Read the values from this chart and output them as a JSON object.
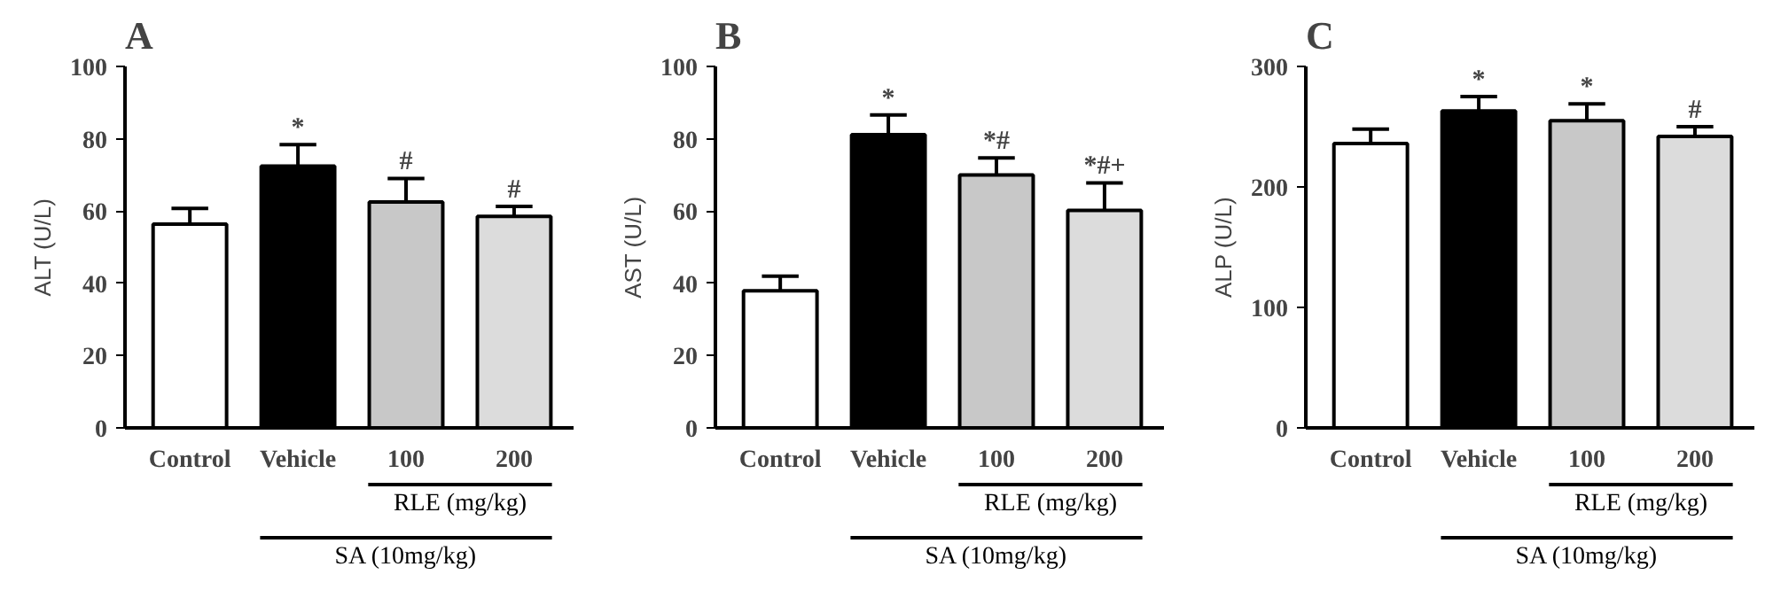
{
  "chart_data": [
    {
      "type": "bar",
      "title": "A",
      "ylabel": "ALT (U/L)",
      "categories": [
        "Control",
        "Vehicle",
        "100",
        "200"
      ],
      "values": [
        56.4,
        72.4,
        62.5,
        58.5
      ],
      "colors": [
        "#ffffff",
        "#000000",
        "#c8c8c8",
        "#dcdcdc"
      ],
      "errors": [
        [
          56.4,
          60.7
        ],
        [
          72.4,
          78.4
        ],
        [
          62.5,
          69
        ],
        [
          58.5,
          61.3
        ]
      ],
      "ylim": [
        0,
        100
      ],
      "yticks": [
        0,
        20,
        40,
        60,
        80,
        100
      ],
      "grid": false,
      "annotations": [
        {
          "text": "*",
          "x": "Vehicle",
          "y": 78.4
        },
        {
          "text": "#",
          "x": "100",
          "y": 69
        },
        {
          "text": "#",
          "x": "200",
          "y": 61.3
        },
        "RLE (mg/kg)",
        "SA (10mg/kg)"
      ]
    },
    {
      "type": "bar",
      "title": "B",
      "ylabel": "AST (U/L)",
      "categories": [
        "Control",
        "Vehicle",
        "100",
        "200"
      ],
      "values": [
        37.9,
        81.1,
        70,
        60.2
      ],
      "colors": [
        "#ffffff",
        "#000000",
        "#c8c8c8",
        "#dcdcdc"
      ],
      "errors": [
        [
          37.9,
          42
        ],
        [
          81.1,
          86.6
        ],
        [
          70,
          74.7
        ],
        [
          60.2,
          67.8
        ]
      ],
      "ylim": [
        0,
        100
      ],
      "yticks": [
        0,
        20,
        40,
        60,
        80,
        100
      ],
      "grid": false,
      "annotations": [
        {
          "text": "*",
          "x": "Vehicle",
          "y": 86.6
        },
        {
          "text": "*#",
          "x": "100",
          "y": 74.7
        },
        {
          "text": "*#+",
          "x": "200",
          "y": 67.8
        },
        "RLE (mg/kg)",
        "SA (10mg/kg)"
      ]
    },
    {
      "type": "bar",
      "title": "C",
      "ylabel": "ALP (U/L)",
      "categories": [
        "Control",
        "Vehicle",
        "100",
        "200"
      ],
      "values": [
        236,
        263,
        255,
        242
      ],
      "colors": [
        "#ffffff",
        "#000000",
        "#c8c8c8",
        "#dcdcdc"
      ],
      "errors": [
        [
          236,
          248
        ],
        [
          263,
          275
        ],
        [
          255,
          269
        ],
        [
          242,
          250
        ]
      ],
      "ylim": [
        0,
        300
      ],
      "yticks": [
        0,
        100,
        200,
        300
      ],
      "grid": false,
      "annotations": [
        {
          "text": "*",
          "x": "Vehicle",
          "y": 275
        },
        {
          "text": "*",
          "x": "100",
          "y": 269
        },
        {
          "text": "#",
          "x": "200",
          "y": 250
        },
        "RLE (mg/kg)",
        "SA (10mg/kg)"
      ]
    }
  ]
}
